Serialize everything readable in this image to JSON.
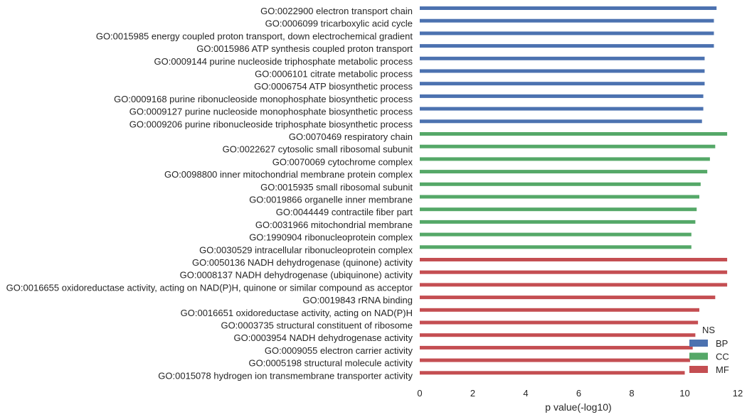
{
  "chart_data": {
    "type": "bar",
    "orientation": "horizontal",
    "title": "",
    "xlabel": "p value(-log10)",
    "ylabel": "",
    "xlim": [
      0,
      12
    ],
    "xticks": [
      0,
      2,
      4,
      6,
      8,
      10,
      12
    ],
    "grid": false,
    "legend": {
      "placement": "bottom-right",
      "title": "NS",
      "entries": [
        {
          "name": "BP",
          "color": "#4c72b0"
        },
        {
          "name": "CC",
          "color": "#55a868"
        },
        {
          "name": "MF",
          "color": "#c44e52"
        }
      ]
    },
    "categories": [
      "GO:0022900 electron transport chain",
      "GO:0006099 tricarboxylic acid cycle",
      "GO:0015985 energy coupled proton transport, down electrochemical gradient",
      "GO:0015986 ATP synthesis coupled proton transport",
      "GO:0009144 purine nucleoside triphosphate metabolic process",
      "GO:0006101 citrate metabolic process",
      "GO:0006754 ATP biosynthetic process",
      "GO:0009168 purine ribonucleoside monophosphate biosynthetic process",
      "GO:0009127 purine nucleoside monophosphate biosynthetic process",
      "GO:0009206 purine ribonucleoside triphosphate biosynthetic process",
      "GO:0070469 respiratory chain",
      "GO:0022627 cytosolic small ribosomal subunit",
      "GO:0070069 cytochrome complex",
      "GO:0098800 inner mitochondrial membrane protein complex",
      "GO:0015935 small ribosomal subunit",
      "GO:0019866 organelle inner membrane",
      "GO:0044449 contractile fiber part",
      "GO:0031966 mitochondrial membrane",
      "GO:1990904 ribonucleoprotein complex",
      "GO:0030529 intracellular ribonucleoprotein complex",
      "GO:0050136 NADH dehydrogenase (quinone) activity",
      "GO:0008137 NADH dehydrogenase (ubiquinone) activity",
      "GO:0016655 oxidoreductase activity, acting on NAD(P)H, quinone or similar compound as acceptor",
      "GO:0019843 rRNA binding",
      "GO:0016651 oxidoreductase activity, acting on NAD(P)H",
      "GO:0003735 structural constituent of ribosome",
      "GO:0003954 NADH dehydrogenase activity",
      "GO:0009055 electron carrier activity",
      "GO:0005198 structural molecule activity",
      "GO:0015078 hydrogen ion transmembrane transporter activity"
    ],
    "groups": [
      "BP",
      "BP",
      "BP",
      "BP",
      "BP",
      "BP",
      "BP",
      "BP",
      "BP",
      "BP",
      "CC",
      "CC",
      "CC",
      "CC",
      "CC",
      "CC",
      "CC",
      "CC",
      "CC",
      "CC",
      "MF",
      "MF",
      "MF",
      "MF",
      "MF",
      "MF",
      "MF",
      "MF",
      "MF",
      "MF"
    ],
    "values": [
      11.2,
      11.1,
      11.1,
      11.1,
      10.75,
      10.75,
      10.75,
      10.7,
      10.7,
      10.65,
      11.6,
      11.15,
      10.95,
      10.85,
      10.6,
      10.55,
      10.45,
      10.4,
      10.25,
      10.25,
      11.6,
      11.6,
      11.6,
      11.15,
      10.55,
      10.5,
      10.4,
      10.3,
      10.2,
      10.0
    ]
  }
}
